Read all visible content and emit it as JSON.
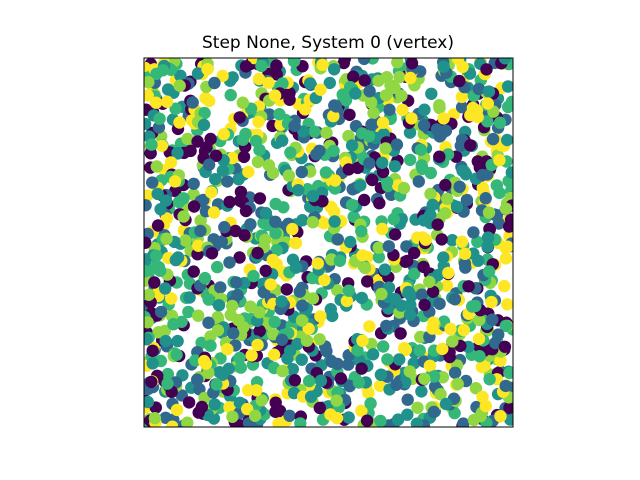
{
  "figure": {
    "title": "Step None, System 0 (vertex)"
  },
  "chart_data": {
    "type": "scatter",
    "title": "Step None, System 0 (vertex)",
    "xlabel": "",
    "ylabel": "",
    "axis_ticks": "hidden",
    "aspect": "equal",
    "xlim": [
      0,
      1
    ],
    "ylim": [
      0,
      1
    ],
    "grid": false,
    "legend": "none",
    "colormap": "viridis",
    "palette": [
      "#440154",
      "#31688e",
      "#21918c",
      "#35b779",
      "#90d743",
      "#fde725"
    ],
    "marker_shape": "circle",
    "approx_point_count": 1600,
    "points": []
  }
}
